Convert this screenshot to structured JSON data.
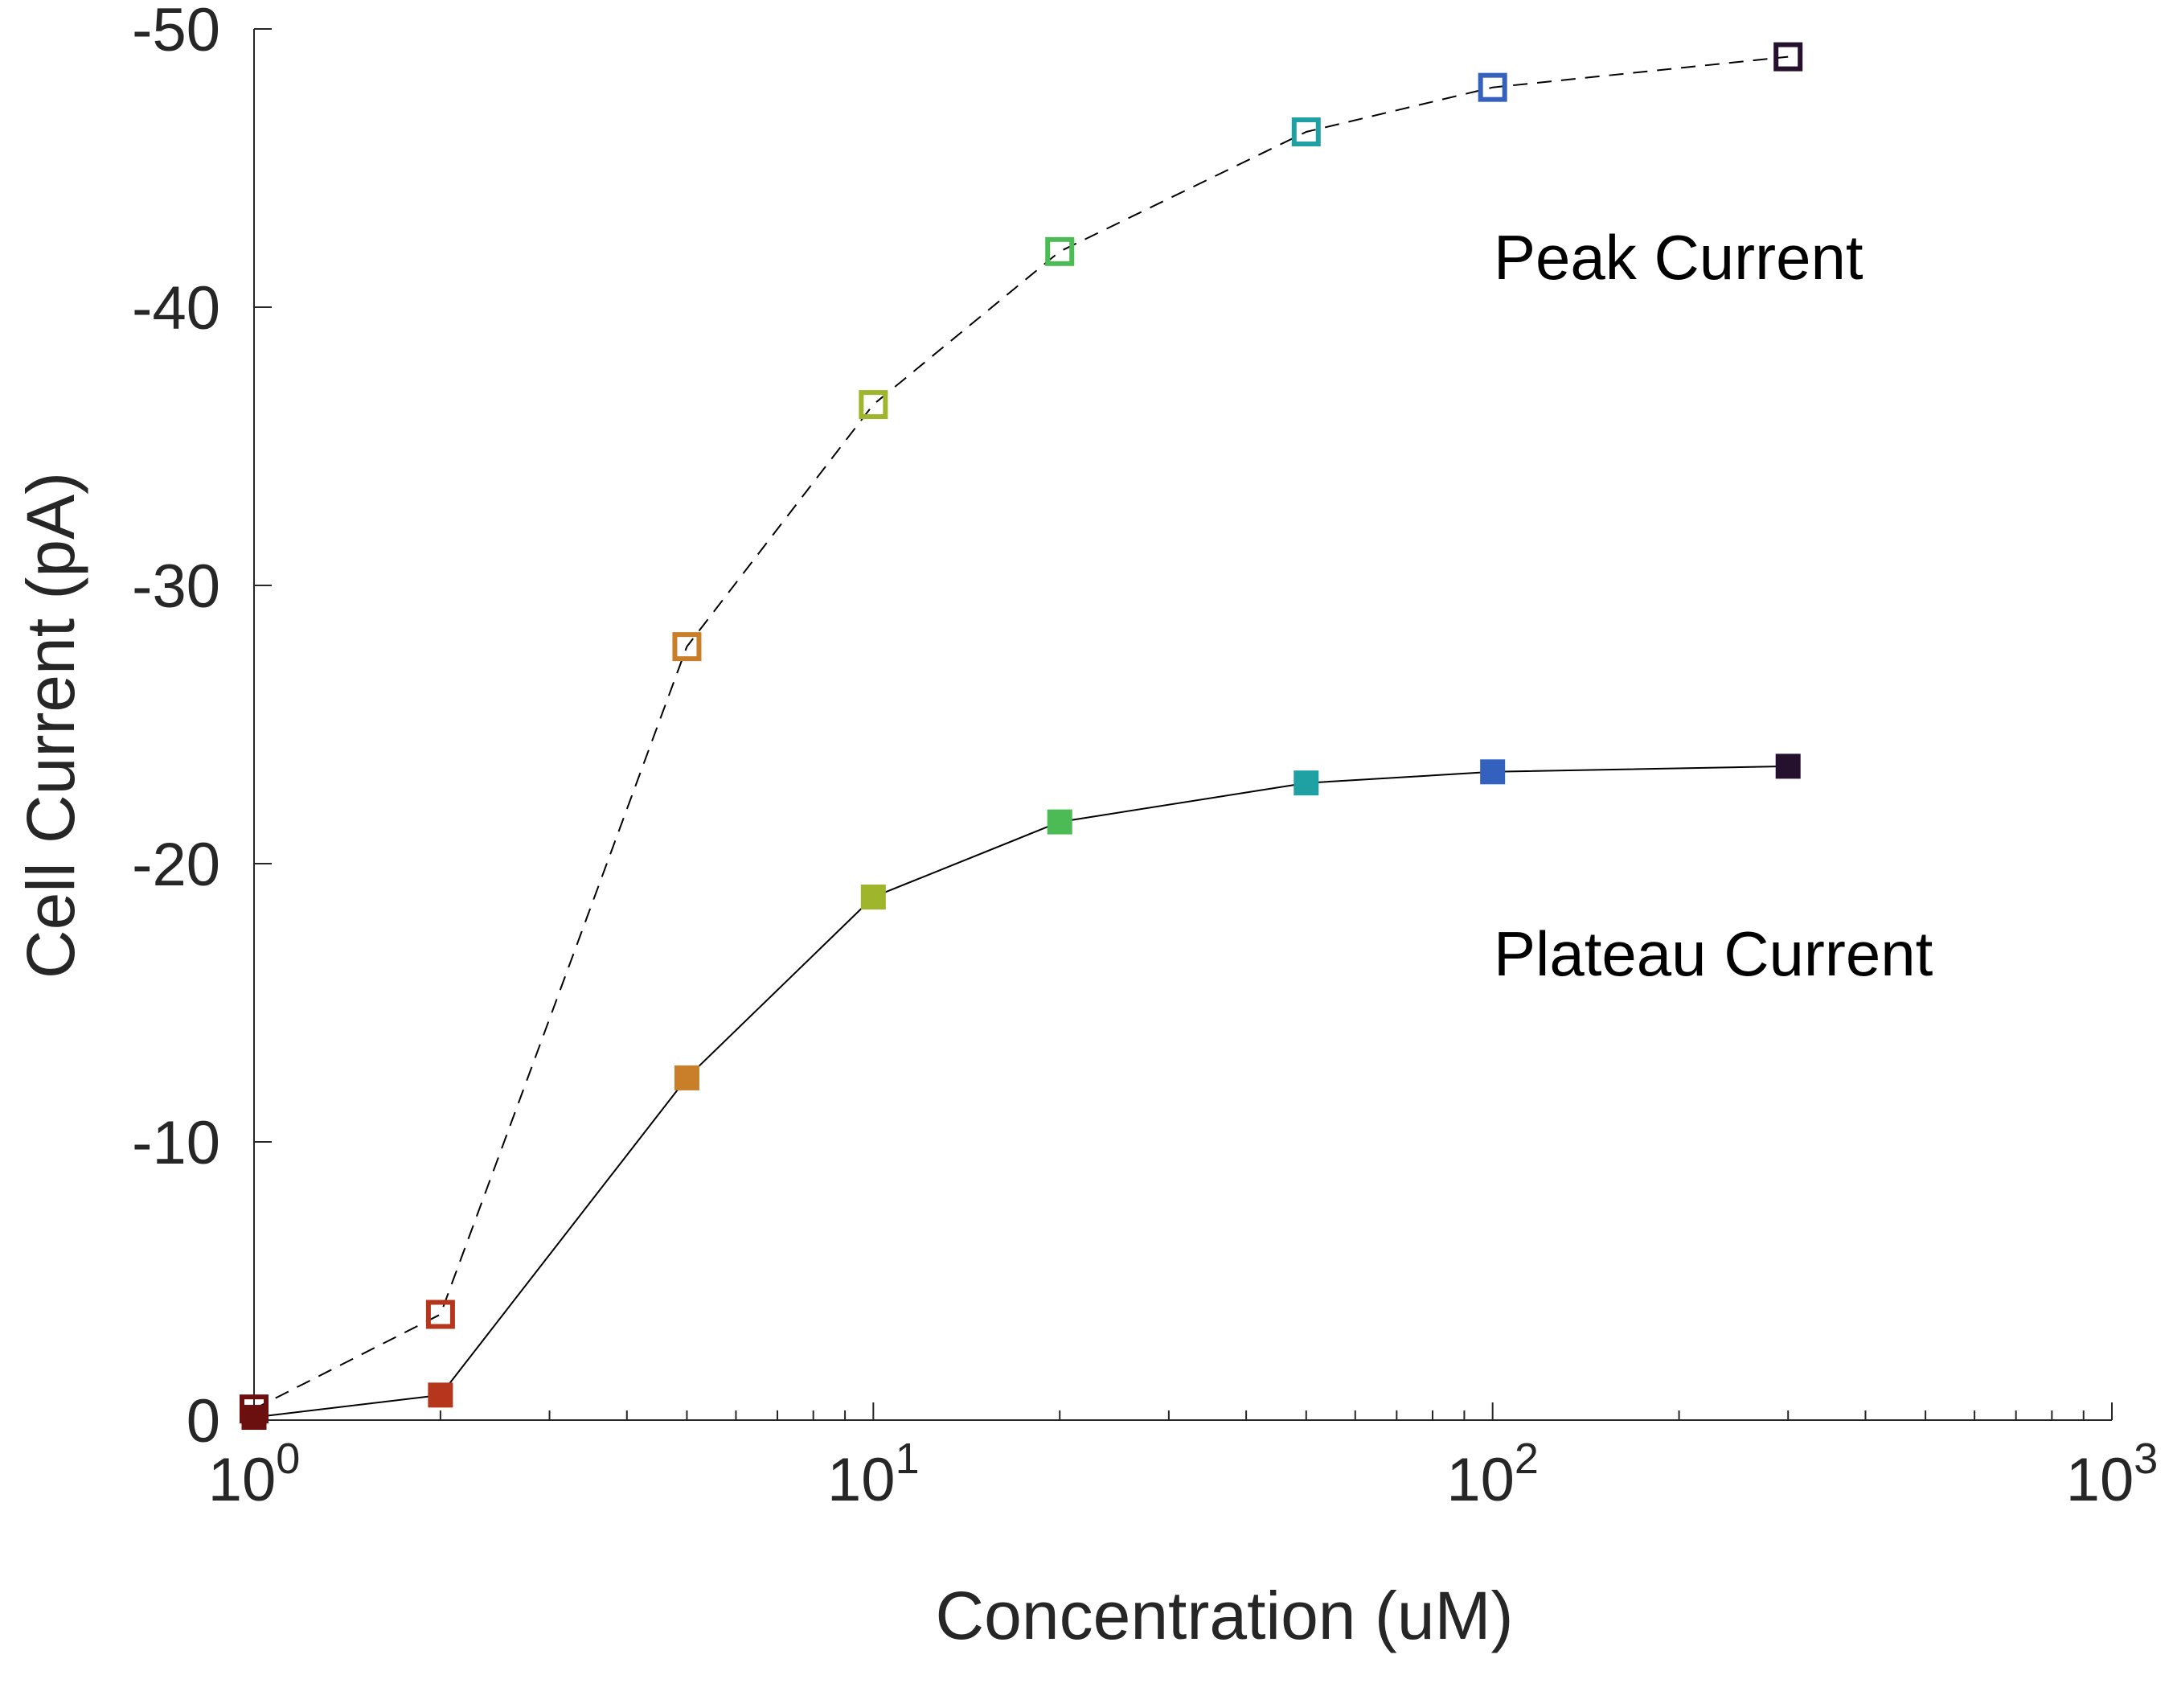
{
  "chart_data": {
    "type": "scatter",
    "title": "",
    "xlabel": "Concentration (uM)",
    "ylabel": "Cell Current (pA)",
    "x_scale": "log",
    "xlim": [
      1,
      1000
    ],
    "ylim": [
      0,
      -50
    ],
    "y_direction": "reversed",
    "grid": false,
    "x_ticks": [
      {
        "base": "10",
        "exp": "0",
        "value": 1
      },
      {
        "base": "10",
        "exp": "1",
        "value": 10
      },
      {
        "base": "10",
        "exp": "2",
        "value": 100
      },
      {
        "base": "10",
        "exp": "3",
        "value": 1000
      }
    ],
    "y_ticks": [
      "0",
      "-10",
      "-20",
      "-30",
      "-40",
      "-50"
    ],
    "x": [
      1,
      2,
      5,
      10,
      20,
      50,
      100,
      300
    ],
    "point_colors": [
      "#6b0f0f",
      "#b5361c",
      "#c97f2a",
      "#9fb52c",
      "#4cbb55",
      "#1fa0a3",
      "#3461be",
      "#25102e"
    ],
    "series": [
      {
        "label": "Peak Current",
        "values": [
          -0.4,
          -3.8,
          -27.8,
          -36.5,
          -42.0,
          -46.3,
          -47.9,
          -49.0
        ],
        "marker": "open-square",
        "line": "dashed"
      },
      {
        "label": "Plateau Current",
        "values": [
          -0.1,
          -0.9,
          -12.3,
          -18.8,
          -21.5,
          -22.9,
          -23.3,
          -23.5
        ],
        "marker": "filled-square",
        "line": "solid"
      }
    ],
    "annotations": [
      "Peak Current",
      "Plateau Current"
    ]
  }
}
